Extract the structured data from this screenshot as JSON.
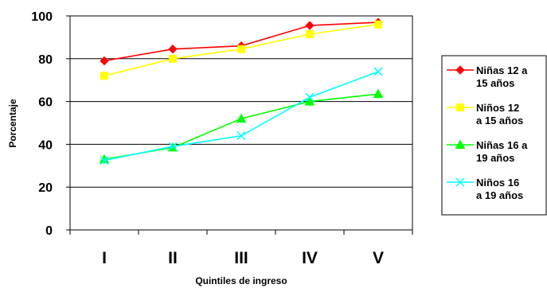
{
  "chart_data": {
    "type": "line",
    "title": "",
    "xlabel": "Quintiles de ingreso",
    "ylabel": "Porcentaje",
    "categories": [
      "I",
      "II",
      "III",
      "IV",
      "V"
    ],
    "ylim": [
      0,
      100
    ],
    "yticks": [
      0,
      20,
      40,
      60,
      80,
      100
    ],
    "grid": true,
    "legend_position": "right",
    "series": [
      {
        "name": "Niñas 12 a 15 años",
        "legend_lines": [
          "Niñas 12 a",
          "15 años"
        ],
        "color": "#ff0000",
        "marker": "diamond",
        "values": [
          79,
          84.5,
          86,
          95.5,
          97
        ]
      },
      {
        "name": "Niños 12 a 15 años",
        "legend_lines": [
          "Niños 12",
          "a 15 años"
        ],
        "color": "#ffff00",
        "marker": "square",
        "values": [
          72,
          80,
          84.5,
          91.5,
          96
        ]
      },
      {
        "name": "Niñas 16 a 19 años",
        "legend_lines": [
          "Niñas 16 a",
          "19 años"
        ],
        "color": "#00ff00",
        "marker": "triangle",
        "values": [
          33,
          38.5,
          52,
          60,
          63.5
        ]
      },
      {
        "name": "Niños 16 a 19 años",
        "legend_lines": [
          "Niños 16",
          "a 19 años"
        ],
        "color": "#00ffff",
        "marker": "x",
        "values": [
          32.5,
          39,
          44,
          62,
          74
        ]
      }
    ]
  }
}
